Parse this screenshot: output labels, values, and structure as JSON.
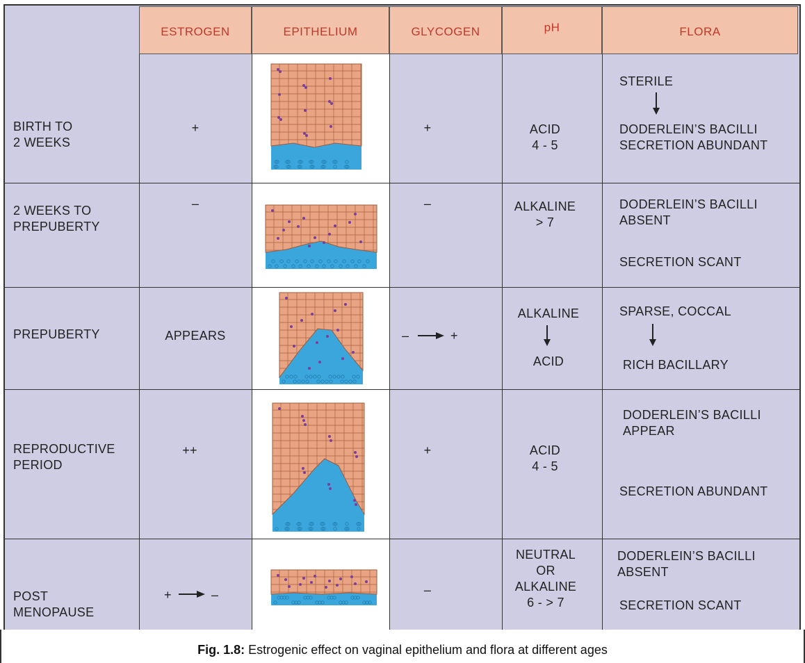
{
  "headers": {
    "estrogen": "ESTROGEN",
    "epithelium": "EPITHELIUM",
    "glycogen": "GLYCOGEN",
    "ph": "pH",
    "flora": "FLORA"
  },
  "rows": [
    {
      "age_line1": "BIRTH TO",
      "age_line2": "2 WEEKS",
      "estrogen": "+",
      "glycogen": "+",
      "ph_line1": "ACID",
      "ph_line2": "4 - 5",
      "flora_line1": "STERILE",
      "flora_line2": "DODERLEIN’S BACILLI",
      "flora_line3": "SECRETION ABUNDANT"
    },
    {
      "age_line1": "2 WEEKS TO",
      "age_line2": "PREPUBERTY",
      "estrogen": "–",
      "glycogen": "–",
      "ph_line1": "ALKALINE",
      "ph_line2": "> 7",
      "flora_line1": "DODERLEIN’S BACILLI",
      "flora_line2": "ABSENT",
      "flora_line3": "SECRETION SCANT"
    },
    {
      "age_line1": "PREPUBERTY",
      "estrogen": "APPEARS",
      "glycogen_from": "–",
      "glycogen_to": "+",
      "ph_line1": "ALKALINE",
      "ph_line2": "ACID",
      "flora_line1": "SPARSE, COCCAL",
      "flora_line2": "RICH BACILLARY"
    },
    {
      "age_line1": "REPRODUCTIVE",
      "age_line2": "PERIOD",
      "estrogen": "++",
      "glycogen": "+",
      "ph_line1": "ACID",
      "ph_line2": "4 - 5",
      "flora_line1": "DODERLEIN’S BACILLI",
      "flora_line2": "APPEAR",
      "flora_line3": "SECRETION ABUNDANT"
    },
    {
      "age_line1": "POST",
      "age_line2": "MENOPAUSE",
      "estrogen_from": "+",
      "estrogen_to": "–",
      "glycogen": "–",
      "ph_line1": "NEUTRAL",
      "ph_line2": "OR",
      "ph_line3": "ALKALINE",
      "ph_line4": "6 - > 7",
      "flora_line1": "DODERLEIN’S BACILLI",
      "flora_line2": "ABSENT",
      "flora_line3": "SECRETION SCANT"
    }
  ],
  "caption": {
    "label": "Fig. 1.8:",
    "text": " Estrogenic effect on vaginal epithelium and flora at different ages"
  },
  "colors": {
    "background": "#cfcde3",
    "header": "#f3c2aa",
    "header_text": "#c0392b",
    "cells": "#e9a583",
    "basal": "#3aa6dc"
  }
}
